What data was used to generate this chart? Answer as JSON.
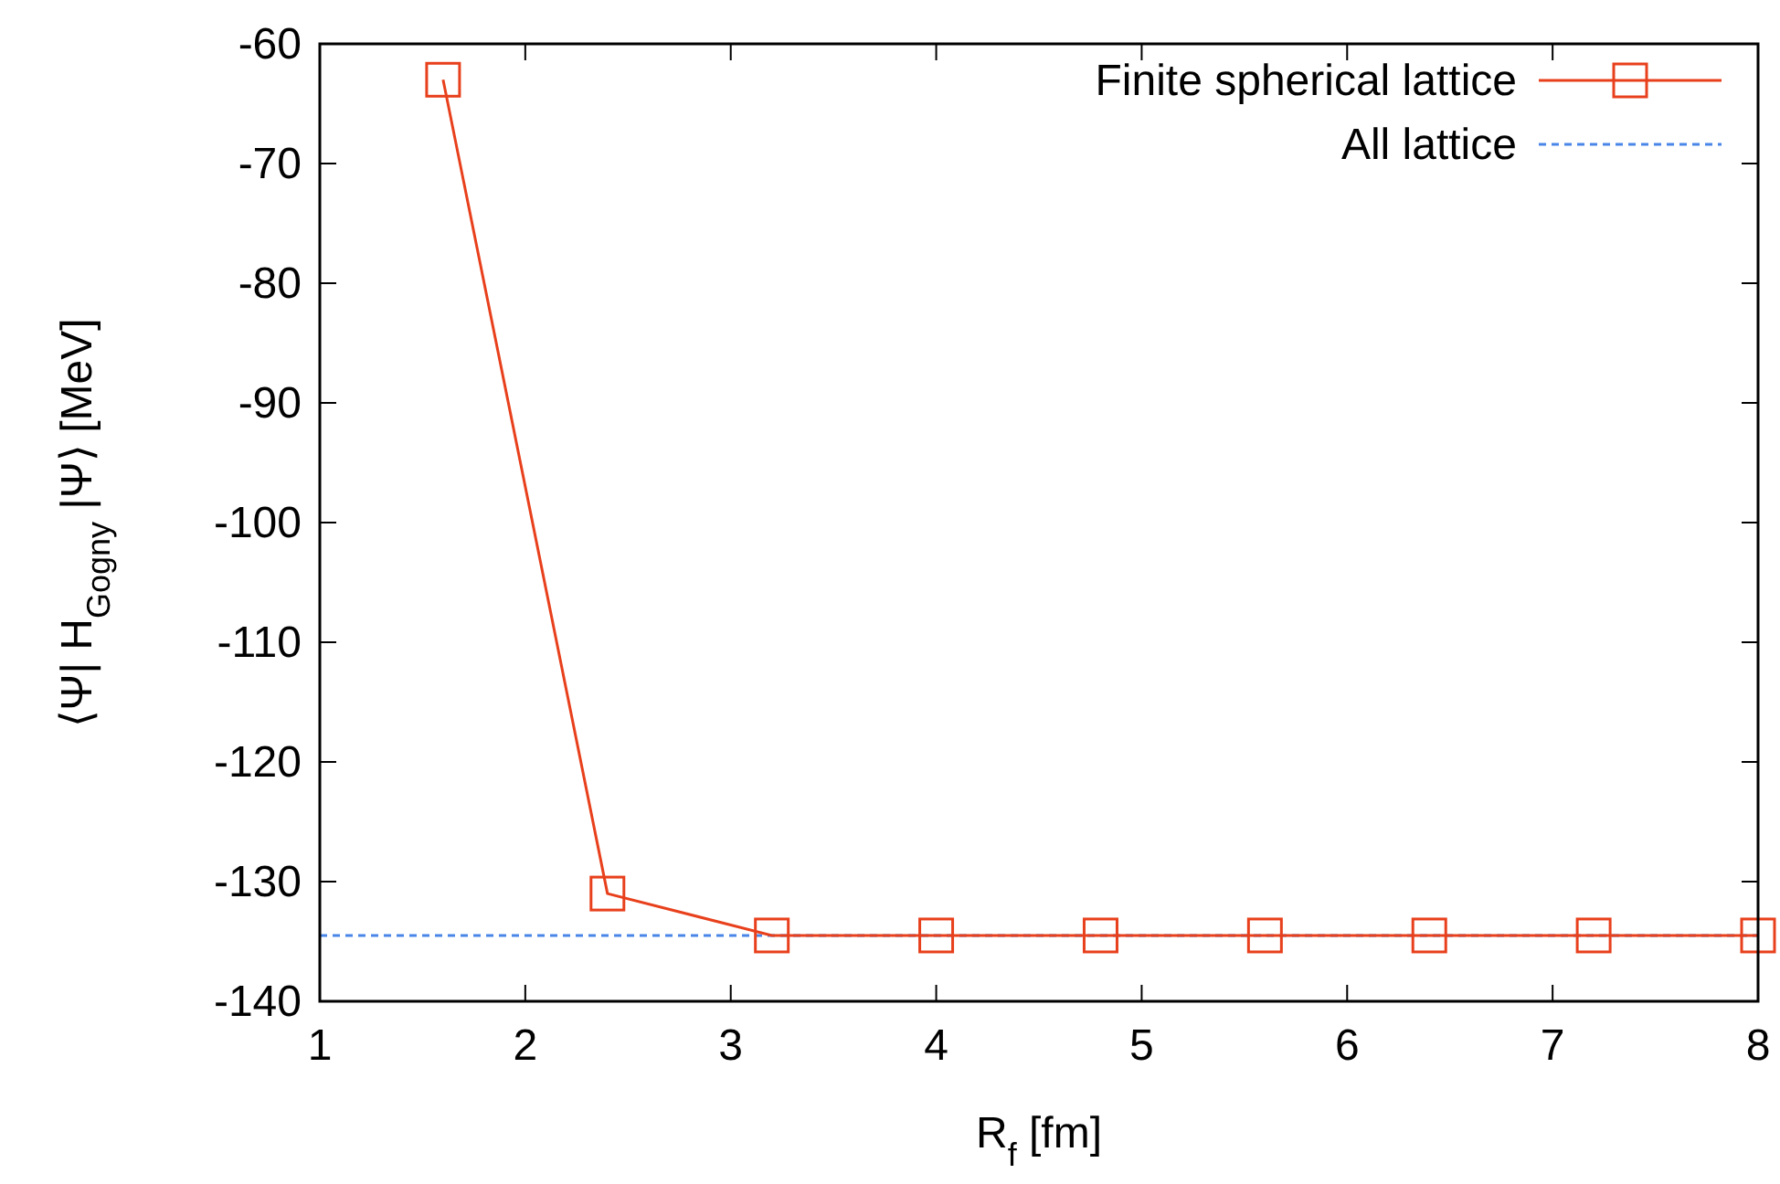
{
  "chart_data": {
    "type": "line",
    "xlabel": "R$_{f}$ [fm]",
    "ylabel": "⟨Ψ| H$_{Gogny}$ |Ψ⟩ [MeV]",
    "x": [
      1.6,
      2.4,
      3.2,
      4.0,
      4.8,
      5.6,
      6.4,
      7.2,
      8.0
    ],
    "series": [
      {
        "name": "Finite spherical lattice",
        "color": "#e8401c",
        "values": [
          -63,
          -131,
          -134.5,
          -134.5,
          -134.5,
          -134.5,
          -134.5,
          -134.5,
          -134.5
        ]
      }
    ],
    "xlim": [
      1,
      8
    ],
    "xticks": [
      1,
      2,
      3,
      4,
      5,
      6,
      7,
      8
    ],
    "ylim": [
      -140,
      -60
    ],
    "yticks": [
      -140,
      -130,
      -120,
      -110,
      -100,
      -90,
      -80,
      -70,
      -60
    ],
    "ref_lines": [
      {
        "axis": "y",
        "value": -134.5,
        "label": "All lattice",
        "color": "#4a86e8",
        "line_style": "dashed"
      }
    ],
    "marker": "square",
    "line_style": "solid",
    "grid": false,
    "legend": "top right"
  }
}
